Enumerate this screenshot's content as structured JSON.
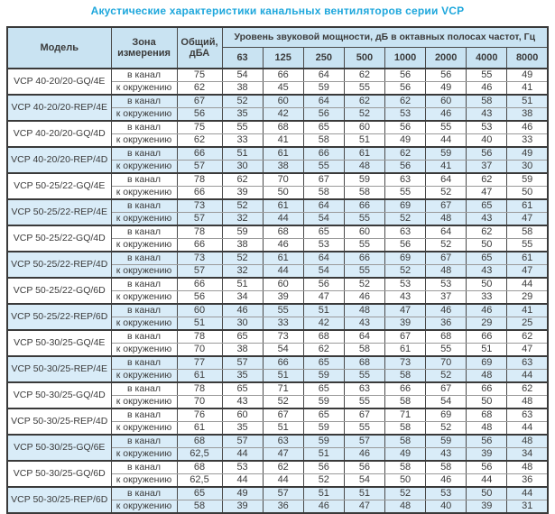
{
  "title": "Акустические характеристики канальных вентиляторов  серии VCP",
  "colors": {
    "title_text": "#1ea7dc",
    "header_bg": "#c9e3f2",
    "shaded_row_bg": "#d9ecf8",
    "plain_row_bg": "#ffffff",
    "border": "#4a4a4a",
    "text": "#3b3b3b"
  },
  "table": {
    "headers": {
      "model": "Модель",
      "zone": "Зона измерения",
      "total": "Общий, дБА",
      "band_group": "Уровень звуковой мощности, дБ в октавных полосах частот, Гц",
      "frequencies": [
        "63",
        "125",
        "250",
        "500",
        "1000",
        "2000",
        "4000",
        "8000"
      ]
    },
    "groups": [
      {
        "model": "VCP 40-20/20-GQ/4E",
        "shaded": false,
        "rows": [
          {
            "zone": "в канал",
            "total": "75",
            "bands": [
              "54",
              "66",
              "64",
              "62",
              "56",
              "56",
              "55",
              "49"
            ]
          },
          {
            "zone": "к окружению",
            "total": "62",
            "bands": [
              "38",
              "45",
              "59",
              "55",
              "56",
              "49",
              "46",
              "41"
            ]
          }
        ]
      },
      {
        "model": "VCP 40-20/20-REP/4E",
        "shaded": true,
        "rows": [
          {
            "zone": "в канал",
            "total": "67",
            "bands": [
              "52",
              "60",
              "64",
              "62",
              "62",
              "60",
              "58",
              "51"
            ]
          },
          {
            "zone": "к окружению",
            "total": "56",
            "bands": [
              "35",
              "42",
              "56",
              "52",
              "53",
              "46",
              "43",
              "38"
            ]
          }
        ]
      },
      {
        "model": "VCP 40-20/20-GQ/4D",
        "shaded": false,
        "rows": [
          {
            "zone": "в канал",
            "total": "75",
            "bands": [
              "55",
              "68",
              "65",
              "60",
              "56",
              "55",
              "53",
              "46"
            ]
          },
          {
            "zone": "к окружению",
            "total": "62",
            "bands": [
              "33",
              "41",
              "58",
              "51",
              "49",
              "44",
              "40",
              "33"
            ]
          }
        ]
      },
      {
        "model": "VCP 40-20/20-REP/4D",
        "shaded": true,
        "rows": [
          {
            "zone": "в канал",
            "total": "66",
            "bands": [
              "51",
              "61",
              "66",
              "61",
              "62",
              "59",
              "56",
              "49"
            ]
          },
          {
            "zone": "к окружению",
            "total": "57",
            "bands": [
              "30",
              "38",
              "55",
              "48",
              "56",
              "41",
              "37",
              "30"
            ]
          }
        ]
      },
      {
        "model": "VCP 50-25/22-GQ/4E",
        "shaded": false,
        "rows": [
          {
            "zone": "в канал",
            "total": "78",
            "bands": [
              "62",
              "70",
              "67",
              "59",
              "63",
              "64",
              "62",
              "59"
            ]
          },
          {
            "zone": "к окружению",
            "total": "66",
            "bands": [
              "39",
              "50",
              "58",
              "58",
              "55",
              "52",
              "47",
              "50"
            ]
          }
        ]
      },
      {
        "model": "VCP 50-25/22-REP/4E",
        "shaded": true,
        "rows": [
          {
            "zone": "в канал",
            "total": "73",
            "bands": [
              "52",
              "61",
              "64",
              "66",
              "69",
              "67",
              "65",
              "61"
            ]
          },
          {
            "zone": "к окружению",
            "total": "57",
            "bands": [
              "32",
              "44",
              "54",
              "55",
              "52",
              "48",
              "43",
              "47"
            ]
          }
        ]
      },
      {
        "model": "VCP 50-25/22-GQ/4D",
        "shaded": false,
        "rows": [
          {
            "zone": "в канал",
            "total": "78",
            "bands": [
              "59",
              "68",
              "65",
              "60",
              "63",
              "64",
              "62",
              "58"
            ]
          },
          {
            "zone": "к окружению",
            "total": "66",
            "bands": [
              "38",
              "46",
              "53",
              "55",
              "56",
              "52",
              "50",
              "55"
            ]
          }
        ]
      },
      {
        "model": "VCP 50-25/22-REP/4D",
        "shaded": true,
        "rows": [
          {
            "zone": "в канал",
            "total": "73",
            "bands": [
              "52",
              "61",
              "64",
              "66",
              "69",
              "67",
              "65",
              "61"
            ]
          },
          {
            "zone": "к окружению",
            "total": "57",
            "bands": [
              "32",
              "44",
              "54",
              "55",
              "52",
              "48",
              "43",
              "47"
            ]
          }
        ]
      },
      {
        "model": "VCP 50-25/22-GQ/6D",
        "shaded": false,
        "rows": [
          {
            "zone": "в канал",
            "total": "66",
            "bands": [
              "51",
              "60",
              "56",
              "52",
              "53",
              "53",
              "50",
              "44"
            ]
          },
          {
            "zone": "к окружению",
            "total": "56",
            "bands": [
              "34",
              "39",
              "47",
              "46",
              "43",
              "37",
              "33",
              "29"
            ]
          }
        ]
      },
      {
        "model": "VCP 50-25/22-REP/6D",
        "shaded": true,
        "rows": [
          {
            "zone": "в канал",
            "total": "60",
            "bands": [
              "46",
              "55",
              "51",
              "48",
              "47",
              "46",
              "46",
              "41"
            ]
          },
          {
            "zone": "к окружению",
            "total": "51",
            "bands": [
              "30",
              "33",
              "42",
              "43",
              "39",
              "36",
              "29",
              "25"
            ]
          }
        ]
      },
      {
        "model": "VCP 50-30/25-GQ/4E",
        "shaded": false,
        "rows": [
          {
            "zone": "в канал",
            "total": "78",
            "bands": [
              "65",
              "73",
              "68",
              "64",
              "67",
              "68",
              "66",
              "62"
            ]
          },
          {
            "zone": "к окружению",
            "total": "70",
            "bands": [
              "38",
              "54",
              "62",
              "58",
              "61",
              "55",
              "51",
              "47"
            ]
          }
        ]
      },
      {
        "model": "VCP 50-30/25-REP/4E",
        "shaded": true,
        "rows": [
          {
            "zone": "в канал",
            "total": "77",
            "bands": [
              "57",
              "66",
              "65",
              "68",
              "73",
              "70",
              "69",
              "63"
            ]
          },
          {
            "zone": "к окружению",
            "total": "61",
            "bands": [
              "35",
              "51",
              "59",
              "55",
              "58",
              "52",
              "48",
              "44"
            ]
          }
        ]
      },
      {
        "model": "VCP 50-30/25-GQ/4D",
        "shaded": false,
        "rows": [
          {
            "zone": "в канал",
            "total": "78",
            "bands": [
              "65",
              "71",
              "65",
              "63",
              "66",
              "67",
              "66",
              "62"
            ]
          },
          {
            "zone": "к окружению",
            "total": "70",
            "bands": [
              "43",
              "52",
              "59",
              "55",
              "58",
              "54",
              "50",
              "48"
            ]
          }
        ]
      },
      {
        "model": "VCP 50-30/25-REP/4D",
        "shaded": false,
        "rows": [
          {
            "zone": "в канал",
            "total": "76",
            "bands": [
              "60",
              "67",
              "65",
              "67",
              "71",
              "69",
              "68",
              "63"
            ]
          },
          {
            "zone": "к окружению",
            "total": "61",
            "bands": [
              "35",
              "51",
              "59",
              "55",
              "58",
              "52",
              "48",
              "44"
            ]
          }
        ]
      },
      {
        "model": "VCP 50-30/25-GQ/6E",
        "shaded": true,
        "rows": [
          {
            "zone": "в канал",
            "total": "68",
            "bands": [
              "57",
              "63",
              "59",
              "57",
              "58",
              "59",
              "56",
              "48"
            ]
          },
          {
            "zone": "к окружению",
            "total": "62,5",
            "bands": [
              "44",
              "47",
              "51",
              "46",
              "49",
              "43",
              "39",
              "34"
            ]
          }
        ]
      },
      {
        "model": "VCP 50-30/25-GQ/6D",
        "shaded": false,
        "rows": [
          {
            "zone": "в канал",
            "total": "68",
            "bands": [
              "53",
              "62",
              "56",
              "56",
              "58",
              "58",
              "56",
              "48"
            ]
          },
          {
            "zone": "к окружению",
            "total": "62,5",
            "bands": [
              "44",
              "44",
              "52",
              "54",
              "50",
              "46",
              "44",
              "36"
            ]
          }
        ]
      },
      {
        "model": "VCP 50-30/25-REP/6D",
        "shaded": true,
        "rows": [
          {
            "zone": "в канал",
            "total": "65",
            "bands": [
              "49",
              "57",
              "51",
              "51",
              "52",
              "53",
              "50",
              "44"
            ]
          },
          {
            "zone": "к окружению",
            "total": "58",
            "bands": [
              "39",
              "36",
              "46",
              "47",
              "48",
              "40",
              "39",
              "31"
            ]
          }
        ]
      }
    ]
  }
}
